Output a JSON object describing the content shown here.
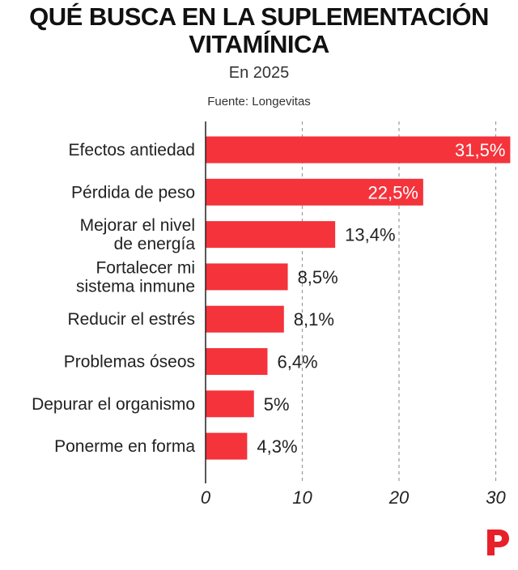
{
  "header": {
    "title_line1": "QUÉ BUSCA EN LA SUPLEMENTACIÓN",
    "title_line2": "VITAMÍNICA",
    "subtitle": "En 2025",
    "source": "Fuente: Longevitas"
  },
  "colors": {
    "bar": "#f4333b",
    "axis": "#222222",
    "grid": "#9a9a9a",
    "logo": "#e8202a"
  },
  "logo_icon": "publisher-p-logo-icon",
  "chart_data": {
    "type": "bar",
    "orientation": "horizontal",
    "categories": [
      [
        "Efectos antiedad"
      ],
      [
        "Pérdida de peso"
      ],
      [
        "Mejorar el nivel",
        "de energía"
      ],
      [
        "Fortalecer mi",
        "sistema inmune"
      ],
      [
        "Reducir el estrés"
      ],
      [
        "Problemas óseos"
      ],
      [
        "Depurar el organismo"
      ],
      [
        "Ponerme en forma"
      ]
    ],
    "values": [
      31.5,
      22.5,
      13.4,
      8.5,
      8.1,
      6.4,
      5,
      4.3
    ],
    "value_labels": [
      "31,5%",
      "22,5%",
      "13,4%",
      "8,5%",
      "8,1%",
      "6,4%",
      "5%",
      "4,3%"
    ],
    "xticks": [
      "0",
      "10",
      "20",
      "30"
    ],
    "xlim": [
      0,
      31.5
    ],
    "grid": true,
    "title": "QUÉ BUSCA EN LA SUPLEMENTACIÓN VITAMÍNICA",
    "xlabel": "",
    "ylabel": ""
  }
}
